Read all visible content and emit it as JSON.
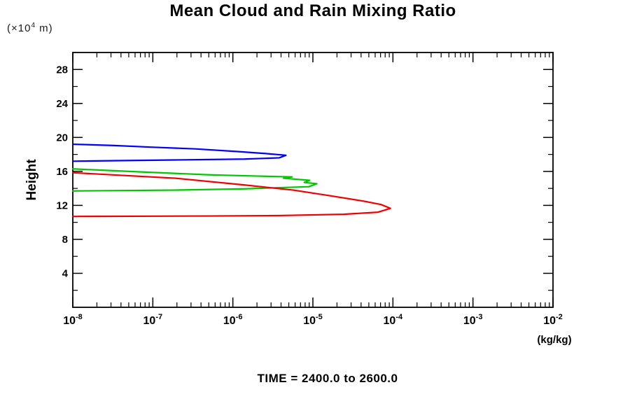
{
  "page": {
    "background": "#ffffff"
  },
  "chart_data": {
    "type": "line",
    "title": "Mean Cloud and Rain Mixing Ratio",
    "caption": "TIME = 2400.0 to 2600.0",
    "xlabel": "(kg/kg)",
    "ylabel": "Height",
    "y_axis_unit": {
      "prefix": "(×10",
      "exponent": "4",
      "suffix": " m)"
    },
    "x_scale": "log",
    "xlim": [
      1e-08,
      0.01
    ],
    "ylim": [
      0,
      30
    ],
    "x_tick_exponents": [
      -8,
      -7,
      -6,
      -5,
      -4,
      -3,
      -2
    ],
    "x_tick_label_base": "10",
    "y_major_ticks": [
      4,
      8,
      12,
      16,
      20,
      24,
      28
    ],
    "y_minor_ticks": [
      2,
      6,
      10,
      14,
      18,
      22,
      26
    ],
    "grid": false,
    "legend": "none",
    "axis_color": "#000000",
    "series": [
      {
        "name": "blue-profile",
        "color": "#0000ff",
        "points": [
          [
            1e-08,
            19.2
          ],
          [
            3.3e-08,
            19.05
          ],
          [
            1e-07,
            18.85
          ],
          [
            3.4e-07,
            18.65
          ],
          [
            1.1e-06,
            18.35
          ],
          [
            2.6e-06,
            18.1
          ],
          [
            4.6e-06,
            17.9
          ],
          [
            3.8e-06,
            17.6
          ],
          [
            1.4e-06,
            17.45
          ],
          [
            1.9e-07,
            17.35
          ],
          [
            1e-08,
            17.2
          ]
        ]
      },
      {
        "name": "green-profile",
        "color": "#00c800",
        "points": [
          [
            1e-08,
            16.3
          ],
          [
            6.8e-08,
            15.95
          ],
          [
            5.1e-07,
            15.6
          ],
          [
            2.1e-06,
            15.45
          ],
          [
            5.5e-06,
            15.35
          ],
          [
            4.3e-06,
            15.2
          ],
          [
            9.1e-06,
            14.95
          ],
          [
            7.8e-06,
            14.7
          ],
          [
            1.12e-05,
            14.55
          ],
          [
            8.9e-06,
            14.2
          ],
          [
            1.4e-06,
            13.95
          ],
          [
            1.9e-07,
            13.8
          ],
          [
            1e-08,
            13.7
          ]
        ]
      },
      {
        "name": "red-profile",
        "color": "#f00000",
        "points": [
          [
            1e-08,
            15.85
          ],
          [
            1.9e-07,
            15.2
          ],
          [
            1.4e-06,
            14.4
          ],
          [
            5.7e-06,
            13.8
          ],
          [
            1.6e-05,
            13.15
          ],
          [
            4.3e-05,
            12.5
          ],
          [
            7.1e-05,
            12.1
          ],
          [
            9.3e-05,
            11.65
          ],
          [
            6.5e-05,
            11.2
          ],
          [
            2.4e-05,
            10.95
          ],
          [
            3.8e-06,
            10.8
          ],
          [
            5.1e-07,
            10.75
          ],
          [
            1e-08,
            10.7
          ]
        ]
      }
    ]
  }
}
